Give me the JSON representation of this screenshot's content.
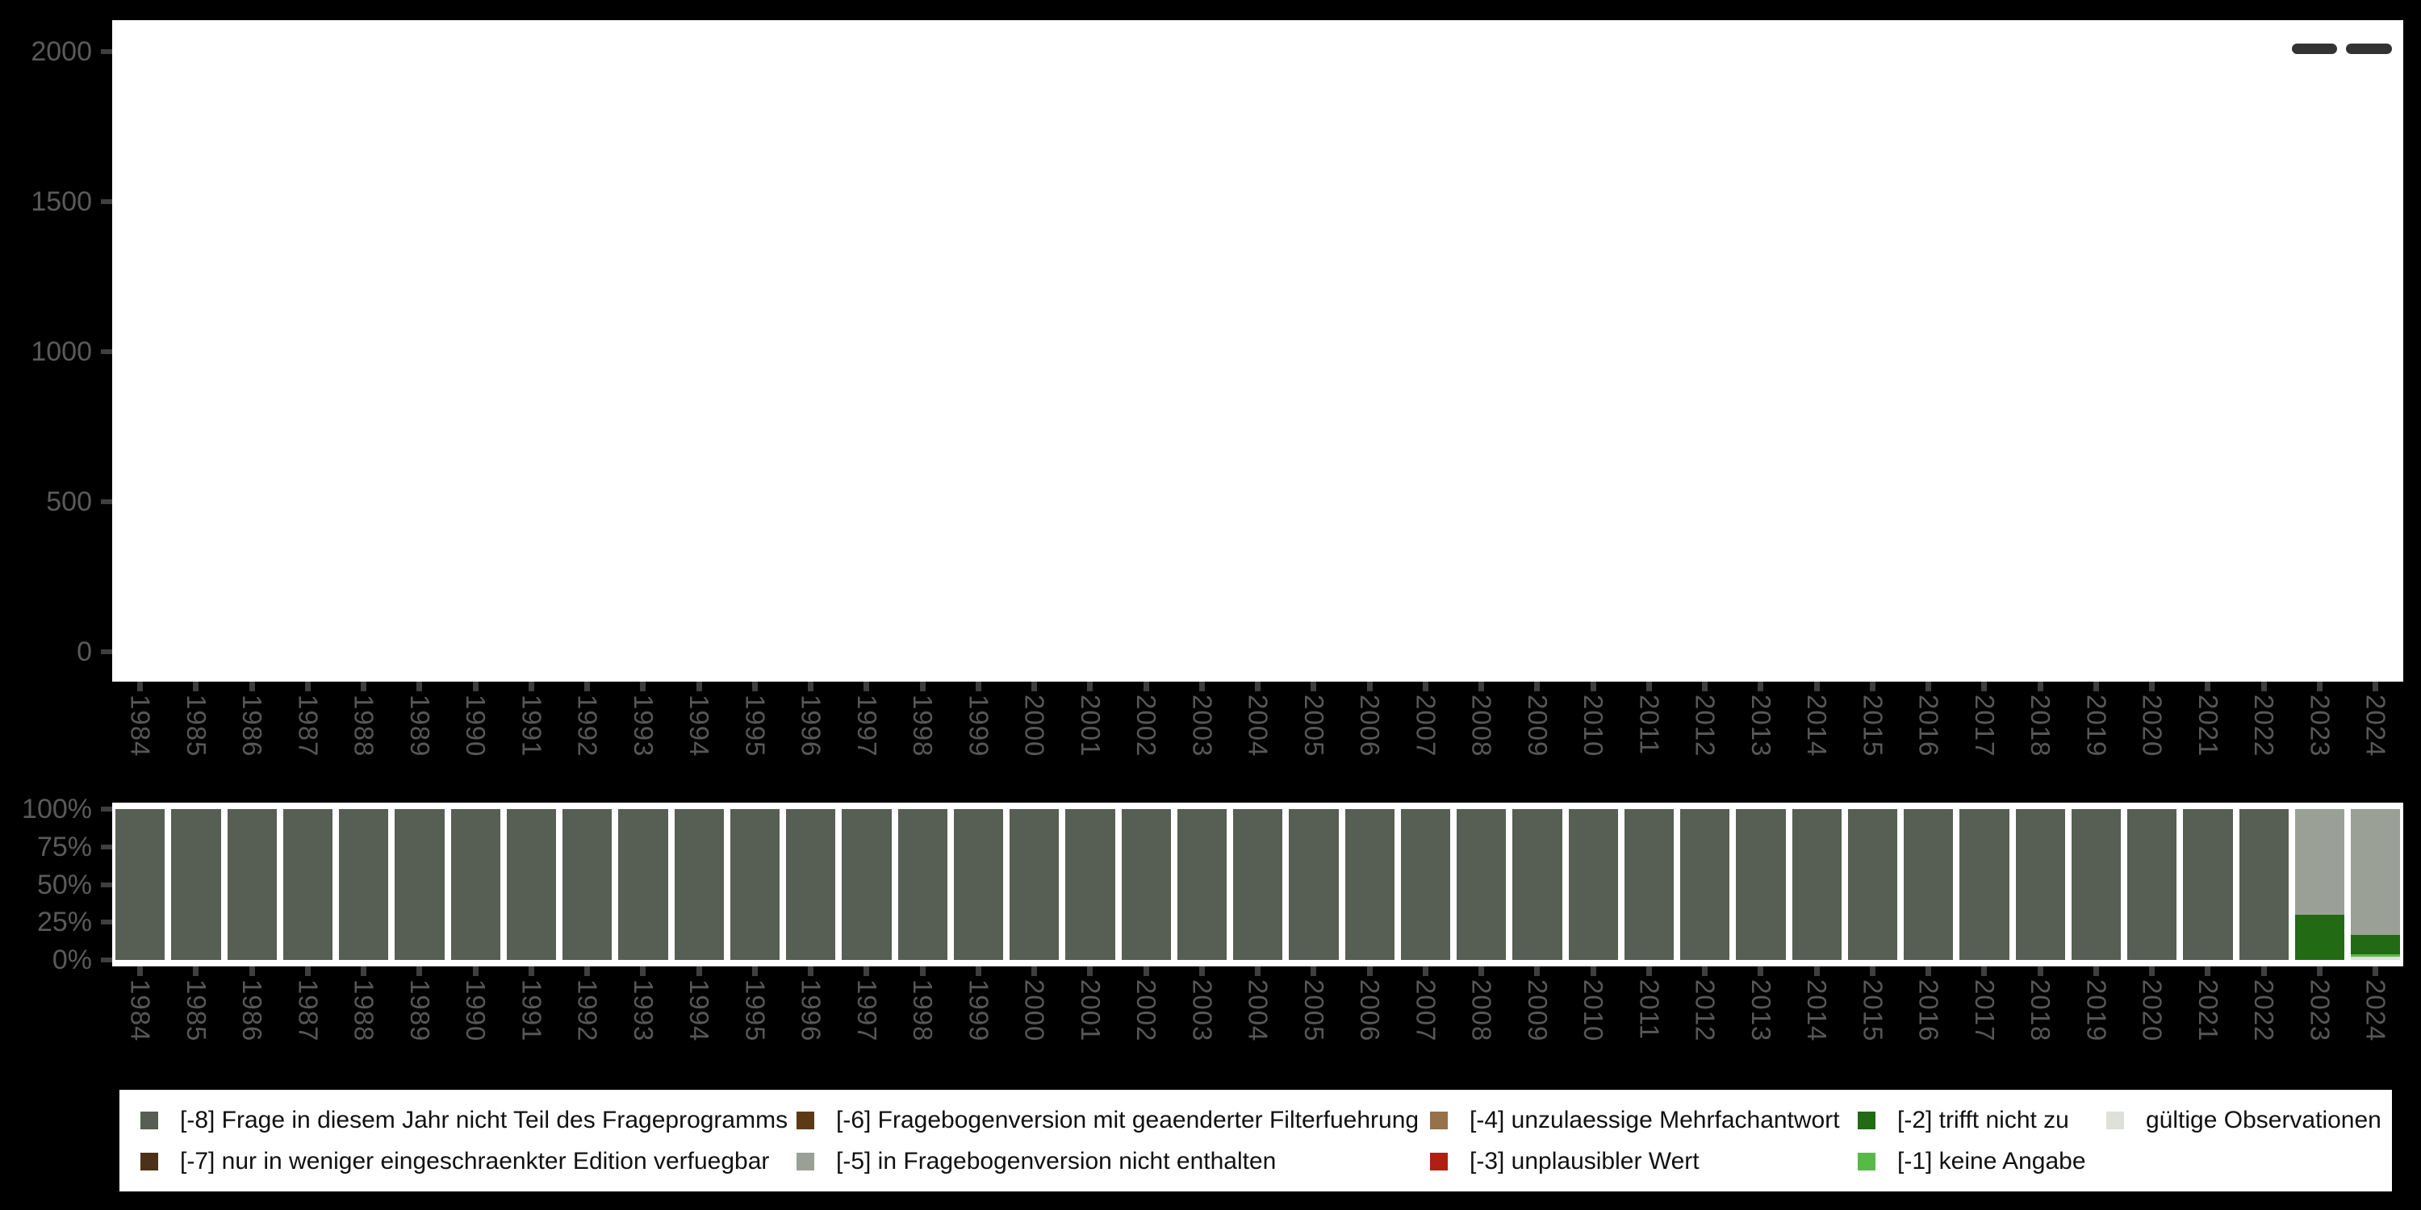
{
  "background_color": "#000000",
  "panel_color": "#ffffff",
  "axis": {
    "tick_color": "#3f3f3f",
    "label_color": "#5a5a5a",
    "year_label_color": "#575757"
  },
  "toolbar": {
    "dash_icon_color": "#333333",
    "dash_count": 2
  },
  "colors": {
    "-8": "#575e53",
    "-7": "#4c3118",
    "-6": "#5c3a17",
    "-5": "#9aa096",
    "-4": "#977149",
    "-3": "#b01f14",
    "-2": "#226a14",
    "-1": "#55bb44",
    "valid": "#dde1da"
  },
  "legend": {
    "entries": [
      {
        "key": "-8",
        "label": "[-8] Frage in diesem Jahr nicht Teil des Frageprogramms",
        "color": "#575e53"
      },
      {
        "key": "-7",
        "label": "[-7] nur in weniger eingeschraenkter Edition verfuegbar",
        "color": "#4c3118"
      },
      {
        "key": "-6",
        "label": "[-6] Fragebogenversion mit geaenderter Filterfuehrung",
        "color": "#5c3a17"
      },
      {
        "key": "-5",
        "label": "[-5] in Fragebogenversion nicht enthalten",
        "color": "#9aa096"
      },
      {
        "key": "-4",
        "label": "[-4] unzulaessige Mehrfachantwort",
        "color": "#977149"
      },
      {
        "key": "-3",
        "label": "[-3] unplausibler Wert",
        "color": "#b01f14"
      },
      {
        "key": "-2",
        "label": "[-2] trifft nicht zu",
        "color": "#226a14"
      },
      {
        "key": "-1",
        "label": "[-1] keine Angabe",
        "color": "#55bb44"
      },
      {
        "key": "valid",
        "label": "gültige Observationen",
        "color": "#dde1da"
      }
    ]
  },
  "chart_data": [
    {
      "type": "bar",
      "title": "",
      "xlabel": "",
      "ylabel": "",
      "yticks": [
        0,
        500,
        1000,
        1500,
        2000
      ],
      "ylim": [
        0,
        2150
      ],
      "grid": false,
      "x": [
        "1984",
        "1985",
        "1986",
        "1987",
        "1988",
        "1989",
        "1990",
        "1991",
        "1992",
        "1993",
        "1994",
        "1995",
        "1996",
        "1997",
        "1998",
        "1999",
        "2000",
        "2001",
        "2002",
        "2003",
        "2004",
        "2005",
        "2006",
        "2007",
        "2008",
        "2009",
        "2010",
        "2011",
        "2012",
        "2013",
        "2014",
        "2015",
        "2016",
        "2017",
        "2018",
        "2019",
        "2020",
        "2021",
        "2022",
        "2023",
        "2024"
      ],
      "values": []
    },
    {
      "type": "stacked-bar-percent",
      "title": "",
      "xlabel": "",
      "ylabel": "",
      "yticks": [
        "0%",
        "25%",
        "50%",
        "75%",
        "100%"
      ],
      "ytick_positions": [
        0,
        25,
        50,
        75,
        100
      ],
      "ylim": [
        0,
        100
      ],
      "grid": false,
      "legend_position": "bottom",
      "years": [
        "1984",
        "1985",
        "1986",
        "1987",
        "1988",
        "1989",
        "1990",
        "1991",
        "1992",
        "1993",
        "1994",
        "1995",
        "1996",
        "1997",
        "1998",
        "1999",
        "2000",
        "2001",
        "2002",
        "2003",
        "2004",
        "2005",
        "2006",
        "2007",
        "2008",
        "2009",
        "2010",
        "2011",
        "2012",
        "2013",
        "2014",
        "2015",
        "2016",
        "2017",
        "2018",
        "2019",
        "2020",
        "2021",
        "2022",
        "2023",
        "2024"
      ],
      "bars": [
        {
          "year": "1984",
          "stack": [
            [
              "-8",
              100
            ]
          ]
        },
        {
          "year": "1985",
          "stack": [
            [
              "-8",
              100
            ]
          ]
        },
        {
          "year": "1986",
          "stack": [
            [
              "-8",
              100
            ]
          ]
        },
        {
          "year": "1987",
          "stack": [
            [
              "-8",
              100
            ]
          ]
        },
        {
          "year": "1988",
          "stack": [
            [
              "-8",
              100
            ]
          ]
        },
        {
          "year": "1989",
          "stack": [
            [
              "-8",
              100
            ]
          ]
        },
        {
          "year": "1990",
          "stack": [
            [
              "-8",
              100
            ]
          ]
        },
        {
          "year": "1991",
          "stack": [
            [
              "-8",
              100
            ]
          ]
        },
        {
          "year": "1992",
          "stack": [
            [
              "-8",
              100
            ]
          ]
        },
        {
          "year": "1993",
          "stack": [
            [
              "-8",
              100
            ]
          ]
        },
        {
          "year": "1994",
          "stack": [
            [
              "-8",
              100
            ]
          ]
        },
        {
          "year": "1995",
          "stack": [
            [
              "-8",
              100
            ]
          ]
        },
        {
          "year": "1996",
          "stack": [
            [
              "-8",
              100
            ]
          ]
        },
        {
          "year": "1997",
          "stack": [
            [
              "-8",
              100
            ]
          ]
        },
        {
          "year": "1998",
          "stack": [
            [
              "-8",
              100
            ]
          ]
        },
        {
          "year": "1999",
          "stack": [
            [
              "-8",
              100
            ]
          ]
        },
        {
          "year": "2000",
          "stack": [
            [
              "-8",
              100
            ]
          ]
        },
        {
          "year": "2001",
          "stack": [
            [
              "-8",
              100
            ]
          ]
        },
        {
          "year": "2002",
          "stack": [
            [
              "-8",
              100
            ]
          ]
        },
        {
          "year": "2003",
          "stack": [
            [
              "-8",
              100
            ]
          ]
        },
        {
          "year": "2004",
          "stack": [
            [
              "-8",
              100
            ]
          ]
        },
        {
          "year": "2005",
          "stack": [
            [
              "-8",
              100
            ]
          ]
        },
        {
          "year": "2006",
          "stack": [
            [
              "-8",
              100
            ]
          ]
        },
        {
          "year": "2007",
          "stack": [
            [
              "-8",
              100
            ]
          ]
        },
        {
          "year": "2008",
          "stack": [
            [
              "-8",
              100
            ]
          ]
        },
        {
          "year": "2009",
          "stack": [
            [
              "-8",
              100
            ]
          ]
        },
        {
          "year": "2010",
          "stack": [
            [
              "-8",
              100
            ]
          ]
        },
        {
          "year": "2011",
          "stack": [
            [
              "-8",
              100
            ]
          ]
        },
        {
          "year": "2012",
          "stack": [
            [
              "-8",
              100
            ]
          ]
        },
        {
          "year": "2013",
          "stack": [
            [
              "-8",
              100
            ]
          ]
        },
        {
          "year": "2014",
          "stack": [
            [
              "-8",
              100
            ]
          ]
        },
        {
          "year": "2015",
          "stack": [
            [
              "-8",
              100
            ]
          ]
        },
        {
          "year": "2016",
          "stack": [
            [
              "-8",
              100
            ]
          ]
        },
        {
          "year": "2017",
          "stack": [
            [
              "-8",
              100
            ]
          ]
        },
        {
          "year": "2018",
          "stack": [
            [
              "-8",
              100
            ]
          ]
        },
        {
          "year": "2019",
          "stack": [
            [
              "-8",
              100
            ]
          ]
        },
        {
          "year": "2020",
          "stack": [
            [
              "-8",
              100
            ]
          ]
        },
        {
          "year": "2021",
          "stack": [
            [
              "-8",
              100
            ]
          ]
        },
        {
          "year": "2022",
          "stack": [
            [
              "-8",
              100
            ]
          ]
        },
        {
          "year": "2023",
          "stack": [
            [
              "-2",
              30
            ],
            [
              "-5",
              70
            ]
          ]
        },
        {
          "year": "2024",
          "stack": [
            [
              "valid",
              2.1
            ],
            [
              "-1",
              1.6
            ],
            [
              "-2",
              12.8
            ],
            [
              "-5",
              83.5
            ]
          ]
        }
      ]
    }
  ]
}
